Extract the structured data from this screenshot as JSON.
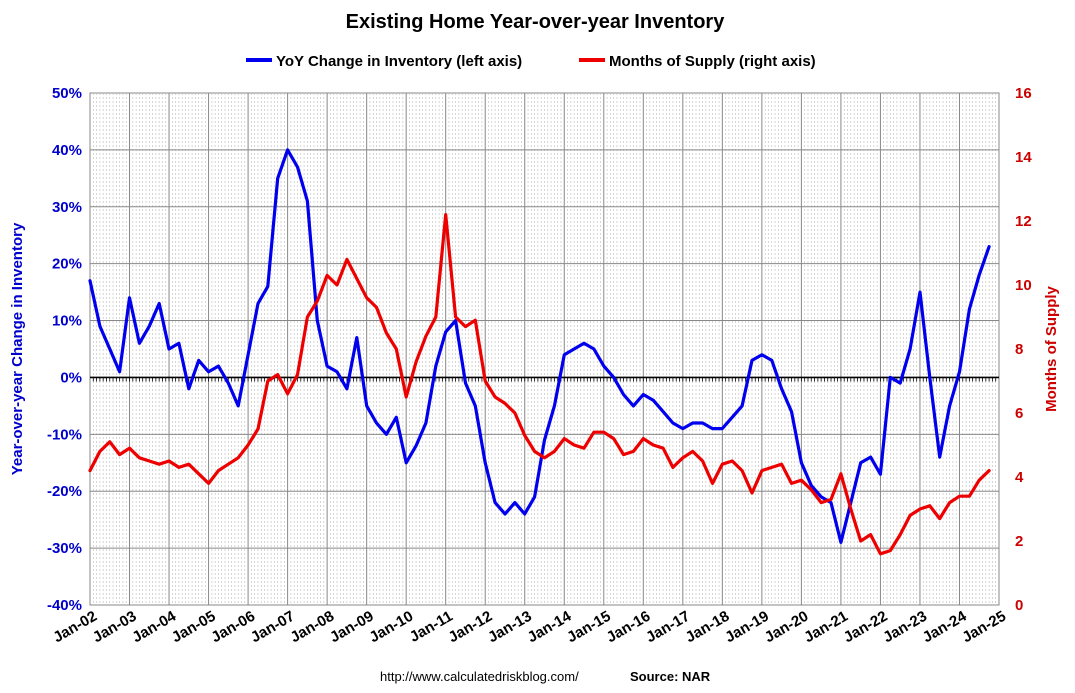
{
  "chart_data": {
    "type": "line",
    "title": "Existing Home Year-over-year Inventory",
    "ylabel_left": "Year-over-year Change in Inventory",
    "ylabel_right": "Months of Supply",
    "source": "http://www.calculatedriskblog.com/",
    "source_label": "Source: NAR",
    "legend_position": "top-center",
    "grid": true,
    "colors": {
      "left_series": "#0000ee",
      "right_series": "#ee0000",
      "zero_line": "#000000",
      "grid": "#999999"
    },
    "x_ticks": [
      "Jan-02",
      "Jan-03",
      "Jan-04",
      "Jan-05",
      "Jan-06",
      "Jan-07",
      "Jan-08",
      "Jan-09",
      "Jan-10",
      "Jan-11",
      "Jan-12",
      "Jan-13",
      "Jan-14",
      "Jan-15",
      "Jan-16",
      "Jan-17",
      "Jan-18",
      "Jan-19",
      "Jan-20",
      "Jan-21",
      "Jan-22",
      "Jan-23",
      "Jan-24",
      "Jan-25"
    ],
    "y_left": {
      "min": -40,
      "max": 50,
      "step": 10,
      "tick_labels": [
        "-40%",
        "-30%",
        "-20%",
        "-10%",
        "0%",
        "10%",
        "20%",
        "30%",
        "40%",
        "50%"
      ]
    },
    "y_right": {
      "min": 0,
      "max": 16,
      "step": 2,
      "tick_labels": [
        "0",
        "2",
        "4",
        "6",
        "8",
        "10",
        "12",
        "14",
        "16"
      ]
    },
    "series": [
      {
        "name": "YoY Change in Inventory (left axis)",
        "axis": "left",
        "x": [
          2002.0,
          2002.25,
          2002.5,
          2002.75,
          2003.0,
          2003.25,
          2003.5,
          2003.75,
          2004.0,
          2004.25,
          2004.5,
          2004.75,
          2005.0,
          2005.25,
          2005.5,
          2005.75,
          2006.0,
          2006.25,
          2006.5,
          2006.75,
          2007.0,
          2007.25,
          2007.5,
          2007.75,
          2008.0,
          2008.25,
          2008.5,
          2008.75,
          2009.0,
          2009.25,
          2009.5,
          2009.75,
          2010.0,
          2010.25,
          2010.5,
          2010.75,
          2011.0,
          2011.25,
          2011.5,
          2011.75,
          2012.0,
          2012.25,
          2012.5,
          2012.75,
          2013.0,
          2013.25,
          2013.5,
          2013.75,
          2014.0,
          2014.25,
          2014.5,
          2014.75,
          2015.0,
          2015.25,
          2015.5,
          2015.75,
          2016.0,
          2016.25,
          2016.5,
          2016.75,
          2017.0,
          2017.25,
          2017.5,
          2017.75,
          2018.0,
          2018.25,
          2018.5,
          2018.75,
          2019.0,
          2019.25,
          2019.5,
          2019.75,
          2020.0,
          2020.25,
          2020.5,
          2020.75,
          2021.0,
          2021.25,
          2021.5,
          2021.75,
          2022.0,
          2022.25,
          2022.5,
          2022.75,
          2023.0,
          2023.25,
          2023.5,
          2023.75,
          2024.0,
          2024.25,
          2024.5,
          2024.75
        ],
        "values": [
          17,
          9,
          5,
          1,
          14,
          6,
          9,
          13,
          5,
          6,
          -2,
          3,
          1,
          2,
          -1,
          -5,
          4,
          13,
          16,
          35,
          40,
          37,
          31,
          10,
          2,
          1,
          -2,
          7,
          -5,
          -8,
          -10,
          -7,
          -15,
          -12,
          -8,
          2,
          8,
          10,
          -1,
          -5,
          -15,
          -22,
          -24,
          -22,
          -24,
          -21,
          -11,
          -5,
          4,
          5,
          6,
          5,
          2,
          0,
          -3,
          -5,
          -3,
          -4,
          -6,
          -8,
          -9,
          -8,
          -8,
          -9,
          -9,
          -7,
          -5,
          3,
          4,
          3,
          -2,
          -6,
          -15,
          -19,
          -21,
          -22,
          -29,
          -22,
          -15,
          -14,
          -17,
          0,
          -1,
          5,
          15,
          0,
          -14,
          -5,
          1,
          12,
          18,
          23
        ]
      },
      {
        "name": "Months of Supply (right axis)",
        "axis": "right",
        "x": [
          2002.0,
          2002.25,
          2002.5,
          2002.75,
          2003.0,
          2003.25,
          2003.5,
          2003.75,
          2004.0,
          2004.25,
          2004.5,
          2004.75,
          2005.0,
          2005.25,
          2005.5,
          2005.75,
          2006.0,
          2006.25,
          2006.5,
          2006.75,
          2007.0,
          2007.25,
          2007.5,
          2007.75,
          2008.0,
          2008.25,
          2008.5,
          2008.75,
          2009.0,
          2009.25,
          2009.5,
          2009.75,
          2010.0,
          2010.25,
          2010.5,
          2010.75,
          2011.0,
          2011.25,
          2011.5,
          2011.75,
          2012.0,
          2012.25,
          2012.5,
          2012.75,
          2013.0,
          2013.25,
          2013.5,
          2013.75,
          2014.0,
          2014.25,
          2014.5,
          2014.75,
          2015.0,
          2015.25,
          2015.5,
          2015.75,
          2016.0,
          2016.25,
          2016.5,
          2016.75,
          2017.0,
          2017.25,
          2017.5,
          2017.75,
          2018.0,
          2018.25,
          2018.5,
          2018.75,
          2019.0,
          2019.25,
          2019.5,
          2019.75,
          2020.0,
          2020.25,
          2020.5,
          2020.75,
          2021.0,
          2021.25,
          2021.5,
          2021.75,
          2022.0,
          2022.25,
          2022.5,
          2022.75,
          2023.0,
          2023.25,
          2023.5,
          2023.75,
          2024.0,
          2024.25,
          2024.5,
          2024.75
        ],
        "values": [
          4.2,
          4.8,
          5.1,
          4.7,
          4.9,
          4.6,
          4.5,
          4.4,
          4.5,
          4.3,
          4.4,
          4.1,
          3.8,
          4.2,
          4.4,
          4.6,
          5.0,
          5.5,
          7.0,
          7.2,
          6.6,
          7.2,
          9.0,
          9.5,
          10.3,
          10.0,
          10.8,
          10.2,
          9.6,
          9.3,
          8.5,
          8.0,
          6.5,
          7.6,
          8.4,
          9.0,
          12.2,
          9.0,
          8.7,
          8.9,
          7.0,
          6.5,
          6.3,
          6.0,
          5.3,
          4.8,
          4.6,
          4.8,
          5.2,
          5.0,
          4.9,
          5.4,
          5.4,
          5.2,
          4.7,
          4.8,
          5.2,
          5.0,
          4.9,
          4.3,
          4.6,
          4.8,
          4.5,
          3.8,
          4.4,
          4.5,
          4.2,
          3.5,
          4.2,
          4.3,
          4.4,
          3.8,
          3.9,
          3.6,
          3.2,
          3.3,
          4.1,
          3.0,
          2.0,
          2.2,
          1.6,
          1.7,
          2.2,
          2.8,
          3.0,
          3.1,
          2.7,
          3.2,
          3.4,
          3.4,
          3.9,
          4.2
        ]
      }
    ]
  }
}
